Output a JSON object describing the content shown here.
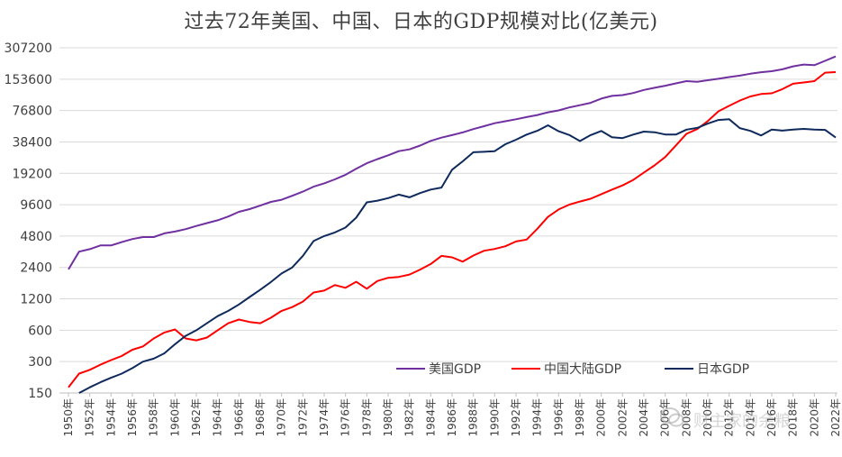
{
  "title": "过去72年美国、中国、日本的GDP规模对比(亿美元)",
  "watermark": "财主家的余粮",
  "chart_data": {
    "type": "line",
    "title": "过去72年美国、中国、日本的GDP规模对比(亿美元)",
    "y_scale": "log2",
    "ylim": [
      150,
      307200
    ],
    "yticks": [
      150,
      300,
      600,
      1200,
      2400,
      4800,
      9600,
      19200,
      38400,
      76800,
      153600,
      307200
    ],
    "x_tick_labels": [
      "1950年",
      "1952年",
      "1954年",
      "1956年",
      "1958年",
      "1960年",
      "1962年",
      "1964年",
      "1966年",
      "1968年",
      "1970年",
      "1972年",
      "1974年",
      "1976年",
      "1978年",
      "1980年",
      "1982年",
      "1984年",
      "1986年",
      "1988年",
      "1990年",
      "1992年",
      "1994年",
      "1996年",
      "1998年",
      "2000年",
      "2002年",
      "2004年",
      "2006年",
      "2008年",
      "2010年",
      "2012年",
      "2014年",
      "2016年",
      "2018年",
      "2020年",
      "2022年"
    ],
    "legend_position": "bottom-right",
    "series": [
      {
        "name": "美国GDP",
        "color": "#7030a0",
        "x": [
          1950,
          1951,
          1952,
          1953,
          1954,
          1955,
          1956,
          1957,
          1958,
          1959,
          1960,
          1961,
          1962,
          1963,
          1964,
          1965,
          1966,
          1967,
          1968,
          1969,
          1970,
          1971,
          1972,
          1973,
          1974,
          1975,
          1976,
          1977,
          1978,
          1979,
          1980,
          1981,
          1982,
          1983,
          1984,
          1985,
          1986,
          1987,
          1988,
          1989,
          1990,
          1991,
          1992,
          1993,
          1994,
          1995,
          1996,
          1997,
          1998,
          1999,
          2000,
          2001,
          2002,
          2003,
          2004,
          2005,
          2006,
          2007,
          2008,
          2009,
          2010,
          2011,
          2012,
          2013,
          2014,
          2015,
          2016,
          2017,
          2018,
          2019,
          2020,
          2021,
          2022
        ],
        "values": [
          2300,
          3400,
          3600,
          3900,
          3900,
          4200,
          4500,
          4700,
          4700,
          5100,
          5300,
          5600,
          6000,
          6400,
          6800,
          7400,
          8200,
          8700,
          9400,
          10200,
          10700,
          11700,
          12800,
          14300,
          15400,
          16800,
          18600,
          21200,
          24000,
          26300,
          28600,
          31300,
          32600,
          35400,
          39300,
          42200,
          44600,
          47400,
          51000,
          54400,
          58000,
          60700,
          63400,
          66500,
          69600,
          73900,
          77000,
          82200,
          86400,
          91000,
          100000,
          106000,
          108000,
          113000,
          121000,
          127000,
          133000,
          140000,
          147000,
          145000,
          150000,
          155000,
          161000,
          166000,
          173000,
          179000,
          183000,
          191000,
          204000,
          212000,
          209000,
          230000,
          254000
        ]
      },
      {
        "name": "中国大陆GDP",
        "color": "#ff0000",
        "x": [
          1950,
          1951,
          1952,
          1953,
          1954,
          1955,
          1956,
          1957,
          1958,
          1959,
          1960,
          1961,
          1962,
          1963,
          1964,
          1965,
          1966,
          1967,
          1968,
          1969,
          1970,
          1971,
          1972,
          1973,
          1974,
          1975,
          1976,
          1977,
          1978,
          1979,
          1980,
          1981,
          1982,
          1983,
          1984,
          1985,
          1986,
          1987,
          1988,
          1989,
          1990,
          1991,
          1992,
          1993,
          1994,
          1995,
          1996,
          1997,
          1998,
          1999,
          2000,
          2001,
          2002,
          2003,
          2004,
          2005,
          2006,
          2007,
          2008,
          2009,
          2010,
          2011,
          2012,
          2013,
          2014,
          2015,
          2016,
          2017,
          2018,
          2019,
          2020,
          2021,
          2022
        ],
        "values": [
          170,
          230,
          250,
          280,
          310,
          340,
          390,
          420,
          500,
          570,
          610,
          500,
          480,
          510,
          600,
          700,
          760,
          720,
          700,
          790,
          920,
          1000,
          1130,
          1380,
          1440,
          1630,
          1530,
          1750,
          1500,
          1780,
          1910,
          1950,
          2050,
          2290,
          2590,
          3100,
          3000,
          2730,
          3120,
          3470,
          3610,
          3830,
          4260,
          4440,
          5640,
          7340,
          8640,
          9610,
          10290,
          10940,
          12110,
          13390,
          14710,
          16600,
          19550,
          22860,
          27520,
          35500,
          45940,
          51000,
          60870,
          75520,
          85320,
          95700,
          104800,
          110600,
          112300,
          123100,
          138900,
          142800,
          147200,
          177300,
          179600
        ]
      },
      {
        "name": "日本GDP",
        "color": "#0e2a5c",
        "x": [
          1951,
          1952,
          1953,
          1954,
          1955,
          1956,
          1957,
          1958,
          1959,
          1960,
          1961,
          1962,
          1963,
          1964,
          1965,
          1966,
          1967,
          1968,
          1969,
          1970,
          1971,
          1972,
          1973,
          1974,
          1975,
          1976,
          1977,
          1978,
          1979,
          1980,
          1981,
          1982,
          1983,
          1984,
          1985,
          1986,
          1987,
          1988,
          1989,
          1990,
          1991,
          1992,
          1993,
          1994,
          1995,
          1996,
          1997,
          1998,
          1999,
          2000,
          2001,
          2002,
          2003,
          2004,
          2005,
          2006,
          2007,
          2008,
          2009,
          2010,
          2011,
          2012,
          2013,
          2014,
          2015,
          2016,
          2017,
          2018,
          2019,
          2020,
          2021,
          2022
        ],
        "values": [
          150,
          170,
          190,
          210,
          230,
          260,
          300,
          320,
          360,
          440,
          530,
          600,
          700,
          820,
          920,
          1060,
          1250,
          1470,
          1740,
          2100,
          2400,
          3100,
          4300,
          4800,
          5200,
          5800,
          7200,
          10100,
          10500,
          11100,
          12000,
          11300,
          12400,
          13400,
          14000,
          20800,
          25000,
          30600,
          30900,
          31300,
          36500,
          40300,
          45200,
          49100,
          55400,
          48600,
          44700,
          39100,
          44600,
          48900,
          42600,
          41800,
          45200,
          48200,
          47600,
          45300,
          45200,
          50400,
          52300,
          57600,
          62300,
          63300,
          52100,
          49000,
          44300,
          50500,
          49300,
          50400,
          51200,
          50400,
          50100,
          42300
        ]
      }
    ]
  }
}
